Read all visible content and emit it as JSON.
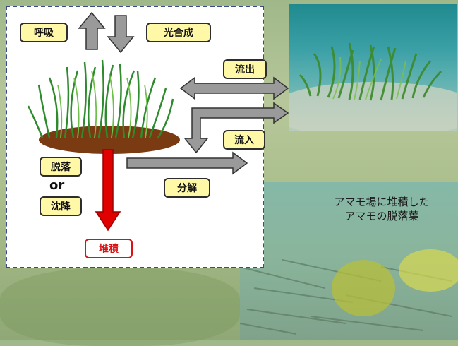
{
  "diagram": {
    "labels": {
      "respiration": "呼吸",
      "photosynthesis": "光合成",
      "outflow": "流出",
      "inflow": "流入",
      "shedding": "脱落",
      "or": "or",
      "sinking": "沈降",
      "decomposition": "分解",
      "deposition": "堆積"
    },
    "colors": {
      "label_fill": "#fff8a6",
      "arrow_gray": "#9a9a9a",
      "arrow_red": "#e00000",
      "panel_border": "#3a4b8c"
    }
  },
  "photos": {
    "bottom_caption_line1": "アマモ場に堆積した",
    "bottom_caption_line2": "アマモの脱落葉"
  }
}
